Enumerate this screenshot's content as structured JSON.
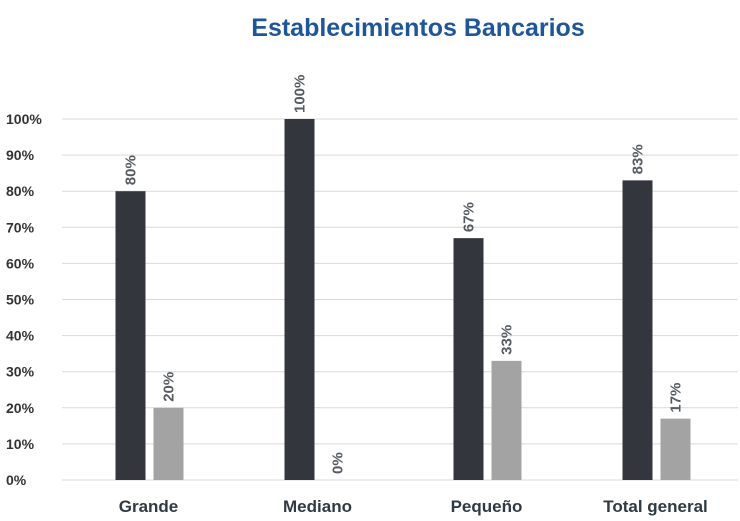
{
  "chart_data": {
    "type": "bar",
    "title": "Establecimientos Bancarios",
    "categories": [
      "Grande",
      "Mediano",
      "Pequeño",
      "Total general"
    ],
    "series": [
      {
        "values": [
          80,
          100,
          67,
          83
        ],
        "labels": [
          "80%",
          "100%",
          "67%",
          "83%"
        ],
        "color": "#33363d"
      },
      {
        "values": [
          20,
          0,
          33,
          17
        ],
        "labels": [
          "20%",
          "0%",
          "33%",
          "17%"
        ],
        "color": "#a3a3a3"
      }
    ],
    "ylim": [
      0,
      100
    ],
    "yticks": [
      0,
      10,
      20,
      30,
      40,
      50,
      60,
      70,
      80,
      90,
      100
    ],
    "ytick_labels": [
      "0%",
      "10%",
      "20%",
      "30%",
      "40%",
      "50%",
      "60%",
      "70%",
      "80%",
      "90%",
      "100%"
    ],
    "grid": true,
    "legend": false,
    "title_color": "#1f5699"
  }
}
